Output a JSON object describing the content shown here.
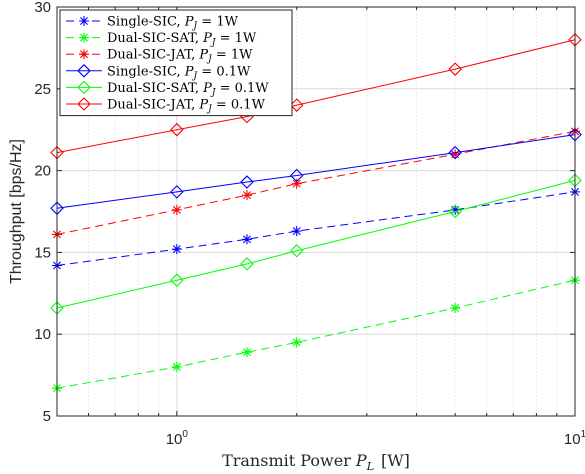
{
  "chart_data": {
    "type": "line",
    "xscale": "log",
    "xlim": [
      0.5,
      10
    ],
    "ylim": [
      5,
      30
    ],
    "x_ticks": [
      1,
      10
    ],
    "x_tick_labels": [
      {
        "base": "10",
        "exp": "0"
      },
      {
        "base": "10",
        "exp": "1"
      }
    ],
    "y_ticks": [
      5,
      10,
      15,
      20,
      25,
      30
    ],
    "y_tick_labels": [
      "5",
      "10",
      "15",
      "20",
      "25",
      "30"
    ],
    "grid": true,
    "xlabel": "Transmit Power P_L [W]",
    "ylabel": "Throughput [bps/Hz]",
    "legend_position": "top-left",
    "x": [
      0.5,
      1,
      1.5,
      2,
      5,
      10
    ],
    "series": [
      {
        "name": "Single-SIC, P_J = 1W",
        "color": "#0000ff",
        "dash": true,
        "marker": "asterisk",
        "values": [
          14.2,
          15.2,
          15.8,
          16.3,
          17.6,
          18.7
        ]
      },
      {
        "name": "Dual-SIC-SAT, P_J = 1W",
        "color": "#00ff00",
        "dash": true,
        "marker": "asterisk",
        "values": [
          6.7,
          8.0,
          8.9,
          9.5,
          11.6,
          13.3
        ]
      },
      {
        "name": "Dual-SIC-JAT, P_J = 1W",
        "color": "#ff0000",
        "dash": true,
        "marker": "asterisk",
        "values": [
          16.1,
          17.6,
          18.5,
          19.2,
          21.0,
          22.4
        ]
      },
      {
        "name": "Single-SIC, P_J = 0.1W",
        "color": "#0000ff",
        "dash": false,
        "marker": "diamond",
        "values": [
          17.7,
          18.7,
          19.3,
          19.7,
          21.1,
          22.2
        ]
      },
      {
        "name": "Dual-SIC-SAT, P_J = 0.1W",
        "color": "#00ff00",
        "dash": false,
        "marker": "diamond",
        "values": [
          11.6,
          13.3,
          14.3,
          15.1,
          17.5,
          19.4
        ]
      },
      {
        "name": "Dual-SIC-JAT, P_J = 0.1W",
        "color": "#ff0000",
        "dash": false,
        "marker": "diamond",
        "values": [
          21.1,
          22.5,
          23.3,
          24.0,
          26.2,
          28.0
        ]
      }
    ]
  }
}
